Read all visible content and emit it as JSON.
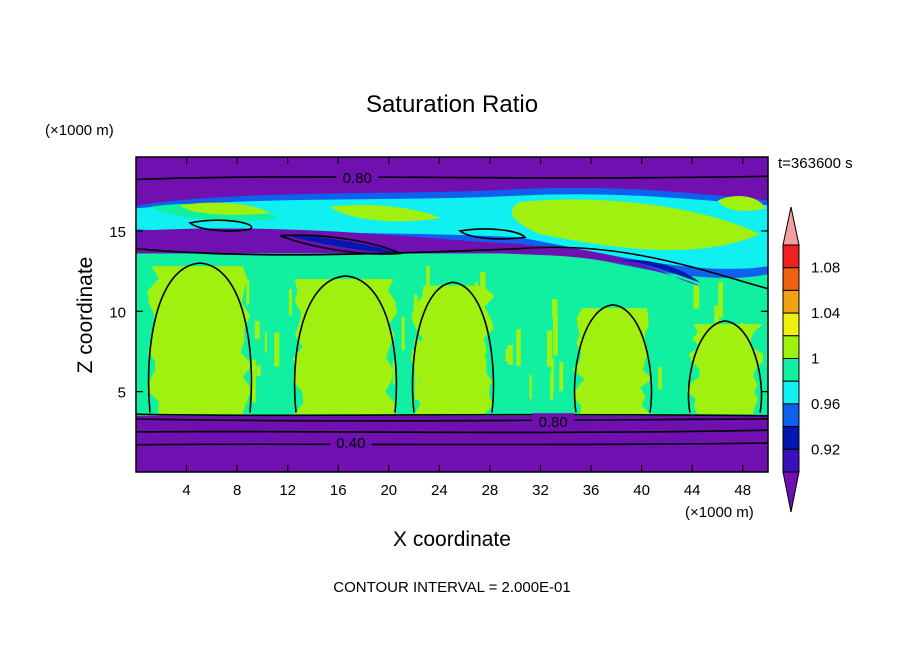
{
  "chart_data": {
    "type": "heatmap",
    "title": "Saturation Ratio",
    "xlabel": "X coordinate",
    "ylabel": "Z coordinate",
    "x_unit": "(×1000 m)",
    "y_unit": "(×1000 m)",
    "time_label": "t=363600 s",
    "footer": "CONTOUR INTERVAL = 2.000E-01",
    "xlim": [
      0,
      50
    ],
    "ylim": [
      0,
      19.6
    ],
    "x_ticks": [
      4,
      8,
      12,
      16,
      20,
      24,
      28,
      32,
      36,
      40,
      44,
      48
    ],
    "y_ticks": [
      5,
      10,
      15
    ],
    "contour_interval": 0.2,
    "contour_labels": [
      {
        "text": "0.80",
        "x": 17.5,
        "y": 18.3
      },
      {
        "text": "0.80",
        "x": 33.0,
        "y": 3.1
      },
      {
        "text": "0.40",
        "x": 17.0,
        "y": 1.8
      }
    ],
    "color_levels": [
      {
        "range": "< 0.90",
        "color": "#7010b0"
      },
      {
        "range": "0.90 – 0.92",
        "color": "#3a10b8"
      },
      {
        "range": "0.92 – 0.94",
        "color": "#0018b0"
      },
      {
        "range": "0.94 – 0.96",
        "color": "#1060f0"
      },
      {
        "range": "0.96 – 0.98",
        "color": "#10f0f0"
      },
      {
        "range": "0.98 – 1.00",
        "color": "#10f0a0"
      },
      {
        "range": "1.00 – 1.02",
        "color": "#a0f010"
      },
      {
        "range": "1.02 – 1.04",
        "color": "#f0f010"
      },
      {
        "range": "1.04 – 1.06",
        "color": "#f0a010"
      },
      {
        "range": "1.06 – 1.08",
        "color": "#f06010"
      },
      {
        "range": "1.08 – 1.10",
        "color": "#f02020"
      },
      {
        "range": "> 1.10",
        "color": "#f0a0a0"
      }
    ],
    "colorbar_labels": [
      "0.92",
      "0.96",
      "1",
      "1.04",
      "1.08"
    ],
    "regions": {
      "lower_dry_layer": {
        "z_range": [
          0,
          3.5
        ],
        "value": "< 0.90"
      },
      "mid_moist_layer": {
        "z_range": [
          3.5,
          13.5
        ],
        "values": [
          "0.98 – 1.00",
          "1.00 – 1.02"
        ]
      },
      "upper_mixed_layer": {
        "z_range": [
          13.5,
          17.8
        ],
        "values": [
          "< 0.90",
          "0.92 – 1.02"
        ]
      },
      "top_dry_layer": {
        "z_range": [
          17.8,
          19.6
        ],
        "value": "< 0.90"
      }
    }
  }
}
